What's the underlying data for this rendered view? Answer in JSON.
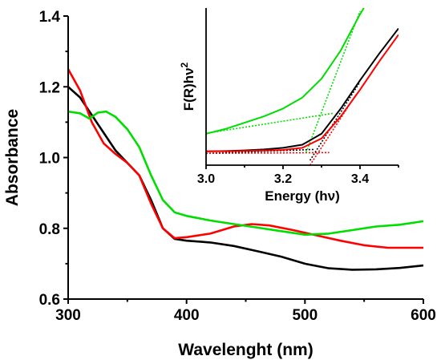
{
  "chart_data": [
    {
      "type": "line",
      "xlabel": "Wavelenght (nm)",
      "ylabel": "Absorbance",
      "xlim": [
        300,
        600
      ],
      "ylim": [
        0.6,
        1.4
      ],
      "xticks": [
        300,
        400,
        500,
        600
      ],
      "yticks": [
        0.6,
        0.8,
        1.0,
        1.2,
        1.4
      ],
      "xtick_labels": [
        "300",
        "400",
        "500",
        "600"
      ],
      "ytick_labels": [
        "0.6",
        "0.8",
        "1.0",
        "1.2",
        "1.4"
      ],
      "grid": false,
      "series": [
        {
          "color": "#000000",
          "points": [
            [
              300,
              1.2
            ],
            [
              310,
              1.17
            ],
            [
              320,
              1.12
            ],
            [
              330,
              1.07
            ],
            [
              340,
              1.02
            ],
            [
              350,
              0.985
            ],
            [
              360,
              0.95
            ],
            [
              370,
              0.88
            ],
            [
              380,
              0.8
            ],
            [
              390,
              0.77
            ],
            [
              400,
              0.765
            ],
            [
              420,
              0.76
            ],
            [
              440,
              0.75
            ],
            [
              460,
              0.735
            ],
            [
              480,
              0.72
            ],
            [
              500,
              0.7
            ],
            [
              520,
              0.687
            ],
            [
              540,
              0.683
            ],
            [
              560,
              0.684
            ],
            [
              580,
              0.688
            ],
            [
              600,
              0.695
            ]
          ]
        },
        {
          "color": "#ff0000",
          "points": [
            [
              300,
              1.25
            ],
            [
              310,
              1.19
            ],
            [
              320,
              1.1
            ],
            [
              330,
              1.04
            ],
            [
              340,
              1.01
            ],
            [
              350,
              0.985
            ],
            [
              360,
              0.95
            ],
            [
              370,
              0.87
            ],
            [
              380,
              0.8
            ],
            [
              390,
              0.772
            ],
            [
              400,
              0.775
            ],
            [
              420,
              0.785
            ],
            [
              440,
              0.805
            ],
            [
              455,
              0.812
            ],
            [
              470,
              0.808
            ],
            [
              490,
              0.795
            ],
            [
              510,
              0.78
            ],
            [
              530,
              0.765
            ],
            [
              550,
              0.752
            ],
            [
              570,
              0.745
            ],
            [
              600,
              0.745
            ]
          ]
        },
        {
          "color": "#00dd00",
          "points": [
            [
              300,
              1.13
            ],
            [
              310,
              1.125
            ],
            [
              318,
              1.11
            ],
            [
              325,
              1.127
            ],
            [
              332,
              1.13
            ],
            [
              340,
              1.115
            ],
            [
              350,
              1.08
            ],
            [
              360,
              1.03
            ],
            [
              370,
              0.95
            ],
            [
              380,
              0.88
            ],
            [
              390,
              0.845
            ],
            [
              400,
              0.835
            ],
            [
              420,
              0.822
            ],
            [
              440,
              0.812
            ],
            [
              460,
              0.802
            ],
            [
              480,
              0.792
            ],
            [
              500,
              0.782
            ],
            [
              520,
              0.785
            ],
            [
              540,
              0.795
            ],
            [
              560,
              0.805
            ],
            [
              580,
              0.81
            ],
            [
              600,
              0.82
            ]
          ]
        }
      ]
    },
    {
      "type": "line",
      "xlabel": "Energy (hν)",
      "ylabel": "F(R)hν",
      "ylabel_sup": "2",
      "xlim": [
        3.0,
        3.5
      ],
      "ylim": [
        0,
        1
      ],
      "xticks": [
        3.0,
        3.2,
        3.4
      ],
      "xtick_labels": [
        "3.0",
        "3.2",
        "3.4"
      ],
      "grid": false,
      "series": [
        {
          "color": "#000000",
          "points": [
            [
              3.0,
              0.088
            ],
            [
              3.05,
              0.09
            ],
            [
              3.1,
              0.094
            ],
            [
              3.15,
              0.1
            ],
            [
              3.2,
              0.11
            ],
            [
              3.25,
              0.13
            ],
            [
              3.3,
              0.2
            ],
            [
              3.35,
              0.36
            ],
            [
              3.4,
              0.54
            ],
            [
              3.45,
              0.71
            ],
            [
              3.5,
              0.87
            ]
          ]
        },
        {
          "color": "#ff0000",
          "points": [
            [
              3.0,
              0.088
            ],
            [
              3.05,
              0.089
            ],
            [
              3.1,
              0.091
            ],
            [
              3.15,
              0.093
            ],
            [
              3.2,
              0.097
            ],
            [
              3.25,
              0.11
            ],
            [
              3.3,
              0.17
            ],
            [
              3.35,
              0.31
            ],
            [
              3.4,
              0.48
            ],
            [
              3.45,
              0.66
            ],
            [
              3.5,
              0.83
            ]
          ]
        },
        {
          "color": "#00dd00",
          "points": [
            [
              3.0,
              0.2
            ],
            [
              3.05,
              0.23
            ],
            [
              3.1,
              0.27
            ],
            [
              3.15,
              0.31
            ],
            [
              3.2,
              0.36
            ],
            [
              3.25,
              0.43
            ],
            [
              3.3,
              0.55
            ],
            [
              3.35,
              0.73
            ],
            [
              3.4,
              0.96
            ],
            [
              3.41,
              1.0
            ]
          ]
        }
      ],
      "tangents": [
        {
          "color": "#000000",
          "points": [
            [
              3.0,
              0.075
            ],
            [
              3.28,
              0.1
            ]
          ]
        },
        {
          "color": "#000000",
          "points": [
            [
              3.27,
              0.03
            ],
            [
              3.4,
              0.53
            ]
          ]
        },
        {
          "color": "#ff0000",
          "points": [
            [
              3.0,
              0.075
            ],
            [
              3.32,
              0.08
            ]
          ]
        },
        {
          "color": "#ff0000",
          "points": [
            [
              3.27,
              0.0
            ],
            [
              3.39,
              0.45
            ]
          ]
        },
        {
          "color": "#00dd00",
          "points": [
            [
              3.02,
              0.21
            ],
            [
              3.33,
              0.33
            ]
          ]
        },
        {
          "color": "#00dd00",
          "points": [
            [
              3.26,
              0.08
            ],
            [
              3.4,
              0.98
            ]
          ]
        }
      ]
    }
  ]
}
